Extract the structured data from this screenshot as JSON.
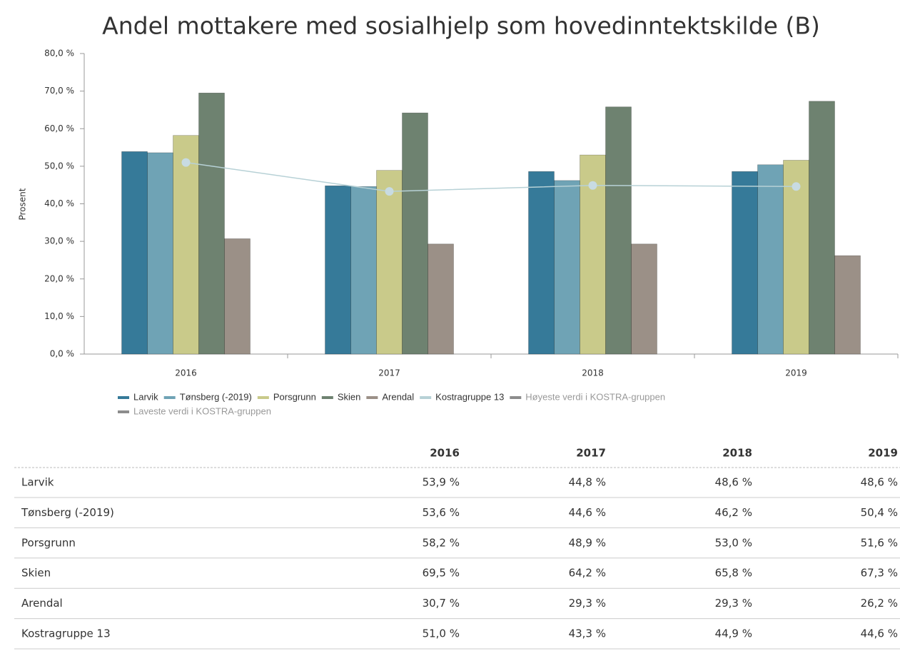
{
  "chart_data": {
    "type": "bar",
    "title": "Andel mottakere med sosialhjelp som hovedinntektskilde (B)",
    "y_label": "Prosent",
    "categories": [
      "2016",
      "2017",
      "2018",
      "2019"
    ],
    "ylim": [
      0,
      80
    ],
    "yticks": [
      {
        "value": 0,
        "label": "0,0 %"
      },
      {
        "value": 10,
        "label": "10,0 %"
      },
      {
        "value": 20,
        "label": "20,0 %"
      },
      {
        "value": 30,
        "label": "30,0 %"
      },
      {
        "value": 40,
        "label": "40,0 %"
      },
      {
        "value": 50,
        "label": "50,0 %"
      },
      {
        "value": 60,
        "label": "60,0 %"
      },
      {
        "value": 70,
        "label": "70,0 %"
      },
      {
        "value": 80,
        "label": "80,0 %"
      }
    ],
    "grid": false,
    "series": [
      {
        "name": "Larvik",
        "type": "bar",
        "color": "#367a99",
        "values": [
          53.9,
          44.8,
          48.6,
          48.6
        ],
        "value_labels": [
          "53,9 %",
          "44,8 %",
          "48,6 %",
          "48,6 %"
        ]
      },
      {
        "name": "Tønsberg (-2019)",
        "type": "bar",
        "color": "#6fa3b5",
        "values": [
          53.6,
          44.6,
          46.2,
          50.4
        ],
        "value_labels": [
          "53,6 %",
          "44,6 %",
          "46,2 %",
          "50,4 %"
        ]
      },
      {
        "name": "Porsgrunn",
        "type": "bar",
        "color": "#c9ca8a",
        "values": [
          58.2,
          48.9,
          53.0,
          51.6
        ],
        "value_labels": [
          "58,2 %",
          "48,9 %",
          "53,0 %",
          "51,6 %"
        ]
      },
      {
        "name": "Skien",
        "type": "bar",
        "color": "#6e8270",
        "values": [
          69.5,
          64.2,
          65.8,
          67.3
        ],
        "value_labels": [
          "69,5 %",
          "64,2 %",
          "65,8 %",
          "67,3 %"
        ]
      },
      {
        "name": "Arendal",
        "type": "bar",
        "color": "#9b9087",
        "values": [
          30.7,
          29.3,
          29.3,
          26.2
        ],
        "value_labels": [
          "30,7 %",
          "29,3 %",
          "29,3 %",
          "26,2 %"
        ]
      },
      {
        "name": "Kostragruppe 13",
        "type": "line",
        "color": "#b7d1d6",
        "values": [
          51.0,
          43.3,
          44.9,
          44.6
        ],
        "value_labels": [
          "51,0 %",
          "43,3 %",
          "44,9 %",
          "44,6 %"
        ]
      }
    ],
    "hidden_legend": [
      {
        "name": "Høyeste verdi i KOSTRA-gruppen",
        "color": "#8c8c8c"
      },
      {
        "name": "Laveste verdi i KOSTRA-gruppen",
        "color": "#8c8c8c"
      }
    ]
  }
}
